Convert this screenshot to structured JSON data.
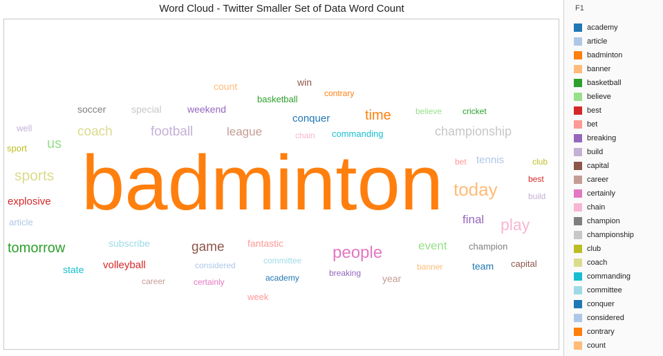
{
  "chart_data": {
    "type": "wordcloud",
    "title": "Word Cloud - Twitter Smaller Set of Data Word Count",
    "words": [
      {
        "text": "badminton",
        "weight": 100,
        "color": "#ff7f0e"
      },
      {
        "text": "today",
        "weight": 26,
        "color": "#ffbb78"
      },
      {
        "text": "people",
        "weight": 24,
        "color": "#e377c2"
      },
      {
        "text": "play",
        "weight": 23,
        "color": "#f7b6d2"
      },
      {
        "text": "sports",
        "weight": 21,
        "color": "#dbdb8d"
      },
      {
        "text": "tomorrow",
        "weight": 20,
        "color": "#2ca02c"
      },
      {
        "text": "us",
        "weight": 20,
        "color": "#98df8a"
      },
      {
        "text": "time",
        "weight": 20,
        "color": "#ff7f0e"
      },
      {
        "text": "football",
        "weight": 19,
        "color": "#c5b0d5"
      },
      {
        "text": "coach",
        "weight": 19,
        "color": "#dbdb8d"
      },
      {
        "text": "game",
        "weight": 19,
        "color": "#8c564b"
      },
      {
        "text": "championship",
        "weight": 18,
        "color": "#c7c7c7"
      },
      {
        "text": "league",
        "weight": 17,
        "color": "#c49c94"
      },
      {
        "text": "final",
        "weight": 17,
        "color": "#9467bd"
      },
      {
        "text": "event",
        "weight": 17,
        "color": "#98df8a"
      },
      {
        "text": "explosive",
        "weight": 15,
        "color": "#d62728"
      },
      {
        "text": "volleyball",
        "weight": 15,
        "color": "#d62728"
      },
      {
        "text": "conquer",
        "weight": 15,
        "color": "#1f77b4"
      },
      {
        "text": "tennis",
        "weight": 15,
        "color": "#aec7e8"
      },
      {
        "text": "subscribe",
        "weight": 14,
        "color": "#9edae5"
      },
      {
        "text": "fantastic",
        "weight": 14,
        "color": "#ff9896"
      },
      {
        "text": "soccer",
        "weight": 14,
        "color": "#7f7f7f"
      },
      {
        "text": "special",
        "weight": 14,
        "color": "#c7c7c7"
      },
      {
        "text": "weekend",
        "weight": 14,
        "color": "#9467bd"
      },
      {
        "text": "count",
        "weight": 14,
        "color": "#ffbb78"
      },
      {
        "text": "win",
        "weight": 14,
        "color": "#8c564b"
      },
      {
        "text": "state",
        "weight": 14,
        "color": "#17becf"
      },
      {
        "text": "team",
        "weight": 14,
        "color": "#1f77b4"
      },
      {
        "text": "year",
        "weight": 14,
        "color": "#c49c94"
      },
      {
        "text": "well",
        "weight": 13,
        "color": "#c5b0d5"
      },
      {
        "text": "sport",
        "weight": 13,
        "color": "#bcbd22"
      },
      {
        "text": "article",
        "weight": 13,
        "color": "#aec7e8"
      },
      {
        "text": "basketball",
        "weight": 13,
        "color": "#2ca02c"
      },
      {
        "text": "commanding",
        "weight": 13,
        "color": "#17becf"
      },
      {
        "text": "champion",
        "weight": 13,
        "color": "#7f7f7f"
      },
      {
        "text": "capital",
        "weight": 13,
        "color": "#8c564b"
      },
      {
        "text": "week",
        "weight": 13,
        "color": "#ff9896"
      },
      {
        "text": "contrary",
        "weight": 12,
        "color": "#ff7f0e"
      },
      {
        "text": "believe",
        "weight": 12,
        "color": "#98df8a"
      },
      {
        "text": "cricket",
        "weight": 12,
        "color": "#2ca02c"
      },
      {
        "text": "chain",
        "weight": 12,
        "color": "#f7b6d2"
      },
      {
        "text": "bet",
        "weight": 12,
        "color": "#ff9896"
      },
      {
        "text": "club",
        "weight": 12,
        "color": "#bcbd22"
      },
      {
        "text": "best",
        "weight": 12,
        "color": "#d62728"
      },
      {
        "text": "build",
        "weight": 12,
        "color": "#c5b0d5"
      },
      {
        "text": "considered",
        "weight": 12,
        "color": "#aec7e8"
      },
      {
        "text": "committee",
        "weight": 12,
        "color": "#9edae5"
      },
      {
        "text": "academy",
        "weight": 12,
        "color": "#1f77b4"
      },
      {
        "text": "breaking",
        "weight": 12,
        "color": "#9467bd"
      },
      {
        "text": "banner",
        "weight": 12,
        "color": "#ffbb78"
      },
      {
        "text": "career",
        "weight": 12,
        "color": "#c49c94"
      },
      {
        "text": "certainly",
        "weight": 12,
        "color": "#e377c2"
      }
    ]
  },
  "legend": {
    "title": "F1",
    "items": [
      {
        "label": "academy",
        "color": "#1f77b4"
      },
      {
        "label": "article",
        "color": "#aec7e8"
      },
      {
        "label": "badminton",
        "color": "#ff7f0e"
      },
      {
        "label": "banner",
        "color": "#ffbb78"
      },
      {
        "label": "basketball",
        "color": "#2ca02c"
      },
      {
        "label": "believe",
        "color": "#98df8a"
      },
      {
        "label": "best",
        "color": "#d62728"
      },
      {
        "label": "bet",
        "color": "#ff9896"
      },
      {
        "label": "breaking",
        "color": "#9467bd"
      },
      {
        "label": "build",
        "color": "#c5b0d5"
      },
      {
        "label": "capital",
        "color": "#8c564b"
      },
      {
        "label": "career",
        "color": "#c49c94"
      },
      {
        "label": "certainly",
        "color": "#e377c2"
      },
      {
        "label": "chain",
        "color": "#f7b6d2"
      },
      {
        "label": "champion",
        "color": "#7f7f7f"
      },
      {
        "label": "championship",
        "color": "#c7c7c7"
      },
      {
        "label": "club",
        "color": "#bcbd22"
      },
      {
        "label": "coach",
        "color": "#dbdb8d"
      },
      {
        "label": "commanding",
        "color": "#17becf"
      },
      {
        "label": "committee",
        "color": "#9edae5"
      },
      {
        "label": "conquer",
        "color": "#1f77b4"
      },
      {
        "label": "considered",
        "color": "#aec7e8"
      },
      {
        "label": "contrary",
        "color": "#ff7f0e"
      },
      {
        "label": "count",
        "color": "#ffbb78"
      }
    ]
  }
}
